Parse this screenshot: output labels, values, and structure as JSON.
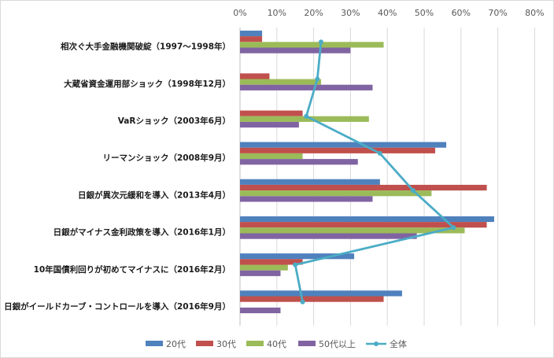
{
  "chart_data": {
    "type": "bar",
    "orientation": "horizontal",
    "categories": [
      "相次ぐ大手金融機関破綻（1997～1998年）",
      "大蔵省資金運用部ショック（1998年12月）",
      "VaRショック（2003年6月）",
      "リーマンショック（2008年9月）",
      "日銀が異次元緩和を導入（2013年4月）",
      "日銀がマイナス金利政策を導入（2016年1月）",
      "10年国債利回りが初めてマイナスに（2016年2月）",
      "日銀がイールドカーブ・コントロールを導入（2016年9月）"
    ],
    "series": [
      {
        "name": "20代",
        "color": "#4f81bd",
        "values": [
          6,
          0,
          0,
          56,
          38,
          69,
          31,
          44
        ]
      },
      {
        "name": "30代",
        "color": "#c0504d",
        "values": [
          6,
          8,
          17,
          53,
          67,
          67,
          17,
          39
        ]
      },
      {
        "name": "40代",
        "color": "#9bbb59",
        "values": [
          39,
          22,
          35,
          17,
          52,
          61,
          13,
          0
        ]
      },
      {
        "name": "50代以上",
        "color": "#8064a2",
        "values": [
          30,
          36,
          16,
          32,
          36,
          48,
          11,
          11
        ]
      }
    ],
    "line_series": {
      "name": "全体",
      "color": "#4bacc6",
      "values": [
        22,
        21,
        18,
        38,
        47,
        58,
        15,
        17
      ]
    },
    "x_ticks": [
      "0%",
      "10%",
      "20%",
      "30%",
      "40%",
      "50%",
      "60%",
      "70%",
      "80%"
    ],
    "xlim": [
      0,
      80
    ],
    "tick_position": "top",
    "grid": true,
    "legend_position": "bottom"
  }
}
